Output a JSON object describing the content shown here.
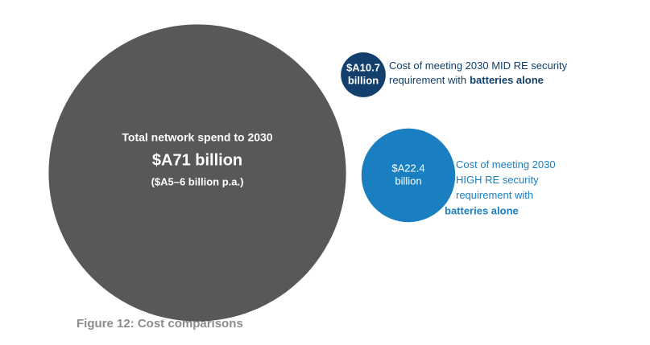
{
  "chart_data": {
    "type": "bubble",
    "caption": "Figure 12: Cost comparisons",
    "bubbles": [
      {
        "value": 71,
        "value_labels": [
          "$A71 billion"
        ],
        "color": "#58585a",
        "heading": "Total network spend to 2030",
        "subtext": "($A5–6 billion p.a.)"
      },
      {
        "value": 10.7,
        "value_labels": [
          "$A10.7",
          "billion"
        ],
        "color": "#123f6b",
        "note": [
          "Cost of meeting 2030 MID RE security",
          "requirement with"
        ],
        "note_bold": "batteries alone"
      },
      {
        "value": 22.4,
        "value_labels": [
          "$A22.4",
          "billion"
        ],
        "color": "#1a7fc1",
        "note": [
          "Cost of meeting 2030",
          "HIGH RE security",
          "requirement with"
        ],
        "note_bold": "batteries alone"
      }
    ]
  }
}
